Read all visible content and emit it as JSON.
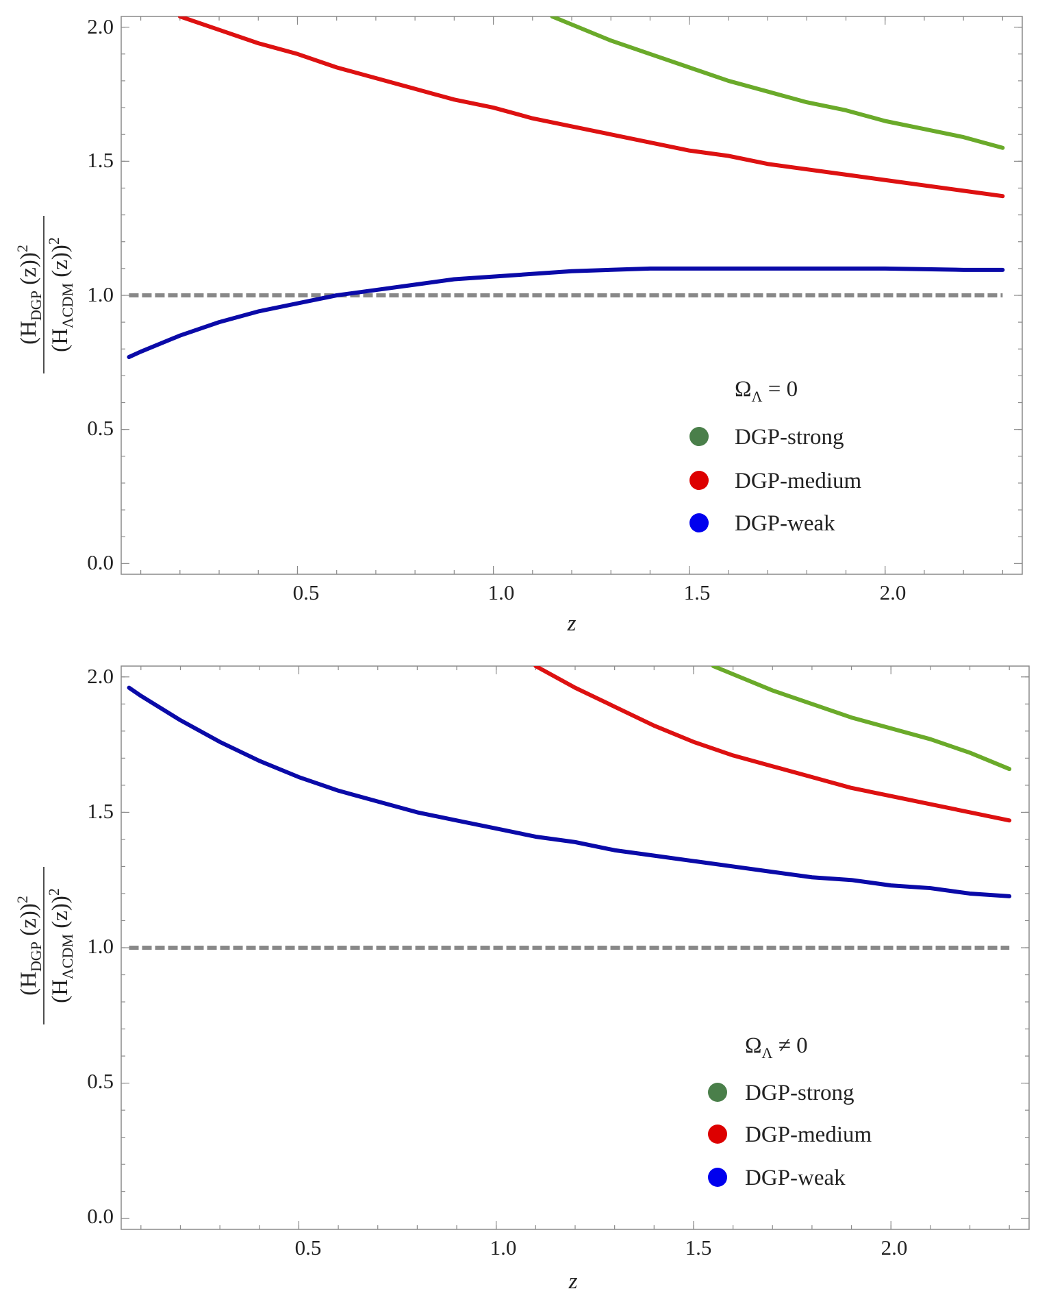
{
  "chart_data": [
    {
      "type": "line",
      "title": "",
      "xlabel": "z",
      "ylabel": {
        "numerator": "(H",
        "numerator_sub": "DGP",
        "numerator_rest": " (z))",
        "numerator_sup": "2",
        "denominator": "(H",
        "denominator_sub": "ΛCDM",
        "denominator_rest": " (z))",
        "denominator_sup": "2"
      },
      "xlim": [
        0.05,
        2.35
      ],
      "ylim": [
        -0.04,
        2.04
      ],
      "xticks": [
        0.5,
        1.0,
        1.5,
        2.0
      ],
      "xtick_labels": [
        "0.5",
        "1.0",
        "1.5",
        "2.0"
      ],
      "yticks": [
        0.0,
        0.5,
        1.0,
        1.5,
        2.0
      ],
      "ytick_labels": [
        "0.0",
        "0.5",
        "1.0",
        "1.5",
        "2.0"
      ],
      "grid": false,
      "legend": {
        "position": "lower-right",
        "title_main": "Ω",
        "title_sub": "Λ",
        "title_rest": " = 0",
        "entries": [
          "DGP-strong",
          "DGP-medium",
          "DGP-weak"
        ],
        "marker_colors": [
          "#4a7f4a",
          "#dd0000",
          "#0000ee"
        ]
      },
      "reference_line": {
        "y": 1.0,
        "style": "dashed",
        "color": "#888888"
      },
      "series": [
        {
          "name": "DGP-strong",
          "color": "#6aaa2a",
          "x": [
            1.15,
            1.2,
            1.3,
            1.4,
            1.5,
            1.6,
            1.7,
            1.8,
            1.9,
            2.0,
            2.1,
            2.2,
            2.3
          ],
          "y": [
            2.04,
            2.01,
            1.95,
            1.9,
            1.85,
            1.8,
            1.76,
            1.72,
            1.69,
            1.65,
            1.62,
            1.59,
            1.55
          ]
        },
        {
          "name": "DGP-medium",
          "color": "#dd1111",
          "x": [
            0.2,
            0.3,
            0.4,
            0.5,
            0.6,
            0.7,
            0.8,
            0.9,
            1.0,
            1.1,
            1.2,
            1.3,
            1.4,
            1.5,
            1.6,
            1.7,
            1.8,
            1.9,
            2.0,
            2.1,
            2.2,
            2.3
          ],
          "y": [
            2.04,
            1.99,
            1.94,
            1.9,
            1.85,
            1.81,
            1.77,
            1.73,
            1.7,
            1.66,
            1.63,
            1.6,
            1.57,
            1.54,
            1.52,
            1.49,
            1.47,
            1.45,
            1.43,
            1.41,
            1.39,
            1.37
          ]
        },
        {
          "name": "DGP-weak",
          "color": "#0a0aa8",
          "x": [
            0.07,
            0.1,
            0.2,
            0.3,
            0.4,
            0.5,
            0.6,
            0.7,
            0.8,
            0.9,
            1.0,
            1.2,
            1.4,
            1.6,
            1.8,
            2.0,
            2.2,
            2.3
          ],
          "y": [
            0.77,
            0.79,
            0.85,
            0.9,
            0.94,
            0.97,
            1.0,
            1.02,
            1.04,
            1.06,
            1.07,
            1.09,
            1.1,
            1.1,
            1.1,
            1.1,
            1.095,
            1.095
          ]
        }
      ]
    },
    {
      "type": "line",
      "title": "",
      "xlabel": "z",
      "ylabel": {
        "numerator": "(H",
        "numerator_sub": "DGP",
        "numerator_rest": " (z))",
        "numerator_sup": "2",
        "denominator": "(H",
        "denominator_sub": "ΛCDM",
        "denominator_rest": " (z))",
        "denominator_sup": "2"
      },
      "xlim": [
        0.05,
        2.35
      ],
      "ylim": [
        -0.04,
        2.04
      ],
      "xticks": [
        0.5,
        1.0,
        1.5,
        2.0
      ],
      "xtick_labels": [
        "0.5",
        "1.0",
        "1.5",
        "2.0"
      ],
      "yticks": [
        0.0,
        0.5,
        1.0,
        1.5,
        2.0
      ],
      "ytick_labels": [
        "0.0",
        "0.5",
        "1.0",
        "1.5",
        "2.0"
      ],
      "grid": false,
      "legend": {
        "position": "lower-right",
        "title_main": "Ω",
        "title_sub": "Λ",
        "title_rest": " ≠ 0",
        "entries": [
          "DGP-strong",
          "DGP-medium",
          "DGP-weak"
        ],
        "marker_colors": [
          "#4a7f4a",
          "#dd0000",
          "#0000ee"
        ]
      },
      "reference_line": {
        "y": 1.0,
        "style": "dashed",
        "color": "#888888"
      },
      "series": [
        {
          "name": "DGP-strong",
          "color": "#6aaa2a",
          "x": [
            1.55,
            1.6,
            1.7,
            1.8,
            1.9,
            2.0,
            2.1,
            2.2,
            2.3
          ],
          "y": [
            2.04,
            2.01,
            1.95,
            1.9,
            1.85,
            1.81,
            1.77,
            1.72,
            1.66
          ]
        },
        {
          "name": "DGP-medium",
          "color": "#dd1111",
          "x": [
            1.1,
            1.2,
            1.3,
            1.4,
            1.5,
            1.6,
            1.7,
            1.8,
            1.9,
            2.0,
            2.1,
            2.2,
            2.3
          ],
          "y": [
            2.04,
            1.96,
            1.89,
            1.82,
            1.76,
            1.71,
            1.67,
            1.63,
            1.59,
            1.56,
            1.53,
            1.5,
            1.47
          ]
        },
        {
          "name": "DGP-weak",
          "color": "#0a0aa8",
          "x": [
            0.07,
            0.1,
            0.2,
            0.3,
            0.4,
            0.5,
            0.6,
            0.7,
            0.8,
            0.9,
            1.0,
            1.1,
            1.2,
            1.3,
            1.4,
            1.5,
            1.6,
            1.7,
            1.8,
            1.9,
            2.0,
            2.1,
            2.2,
            2.3
          ],
          "y": [
            1.96,
            1.93,
            1.84,
            1.76,
            1.69,
            1.63,
            1.58,
            1.54,
            1.5,
            1.47,
            1.44,
            1.41,
            1.39,
            1.36,
            1.34,
            1.32,
            1.3,
            1.28,
            1.26,
            1.25,
            1.23,
            1.22,
            1.2,
            1.19
          ]
        }
      ]
    }
  ]
}
